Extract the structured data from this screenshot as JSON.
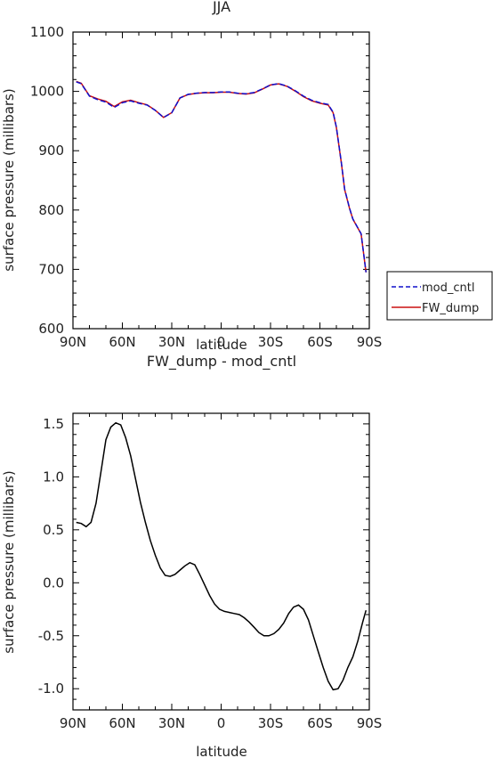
{
  "chart_data": [
    {
      "type": "line",
      "title": "JJA",
      "xlabel": "latitude",
      "ylabel": "surface pressure (millibars)",
      "xlim": [
        90,
        -90
      ],
      "ylim": [
        600,
        1100
      ],
      "x_ticks": [
        90,
        60,
        30,
        0,
        -30,
        -60,
        -90
      ],
      "x_tick_labels": [
        "90N",
        "60N",
        "30N",
        "0",
        "30S",
        "60S",
        "90S"
      ],
      "y_ticks": [
        600,
        700,
        800,
        900,
        1000,
        1100
      ],
      "y_tick_labels": [
        "600",
        "700",
        "800",
        "900",
        "1000",
        "1100"
      ],
      "legend_position": "right",
      "x": [
        88,
        85,
        80,
        75,
        70,
        65,
        60,
        55,
        50,
        45,
        40,
        35,
        30,
        25,
        20,
        15,
        10,
        5,
        0,
        -5,
        -10,
        -15,
        -20,
        -25,
        -30,
        -35,
        -40,
        -45,
        -50,
        -55,
        -60,
        -65,
        -68,
        -70,
        -73,
        -75,
        -78,
        -80,
        -85,
        -88
      ],
      "series": [
        {
          "name": "mod_cntl",
          "color": "#1010cc",
          "dash": "dashed",
          "values": [
            1016,
            1013,
            992,
            986,
            982,
            973,
            981,
            984,
            980,
            977,
            968,
            956,
            964,
            989,
            995,
            997,
            998,
            998,
            999,
            999,
            997,
            996,
            998,
            1004,
            1011,
            1013,
            1009,
            1001,
            992,
            985,
            981,
            978,
            965,
            940,
            880,
            835,
            803,
            785,
            760,
            695
          ]
        },
        {
          "name": "FW_dump",
          "color": "#cc1010",
          "dash": "solid",
          "values": [
            1016.6,
            1013.6,
            992.7,
            987.3,
            983.4,
            974.5,
            982.5,
            985.2,
            980.9,
            977.4,
            968.2,
            956.1,
            964.1,
            989.0,
            994.8,
            996.7,
            997.8,
            997.7,
            998.7,
            998.7,
            996.6,
            995.5,
            997.5,
            1003.8,
            1010.8,
            1012.8,
            1008.6,
            1000.4,
            991.2,
            984.1,
            980.0,
            977.1,
            964.1,
            939.2,
            879.3,
            834.4,
            802.6,
            784.7,
            759.8,
            694.9
          ]
        }
      ]
    },
    {
      "type": "line",
      "title": "FW_dump - mod_cntl",
      "xlabel": "latitude",
      "ylabel": "surface pressure (millibars)",
      "xlim": [
        90,
        -90
      ],
      "ylim": [
        -1.2,
        1.6
      ],
      "x_ticks": [
        90,
        60,
        30,
        0,
        -30,
        -60,
        -90
      ],
      "x_tick_labels": [
        "90N",
        "60N",
        "30N",
        "0",
        "30S",
        "60S",
        "90S"
      ],
      "y_ticks": [
        1.5,
        1.0,
        0.5,
        0.0,
        -0.5,
        -1.0
      ],
      "y_tick_labels": [
        "1.5",
        "1.0",
        "0.5",
        "0.0",
        "-0.5",
        "-1.0"
      ],
      "x": [
        88,
        85,
        82,
        79,
        76,
        73,
        70,
        67,
        64,
        61,
        58,
        55,
        52,
        49,
        46,
        43,
        40,
        37,
        34,
        31,
        28,
        25,
        22,
        19,
        16,
        13,
        10,
        7,
        4,
        1,
        -2,
        -5,
        -8,
        -11,
        -14,
        -17,
        -20,
        -23,
        -26,
        -29,
        -32,
        -35,
        -38,
        -41,
        -44,
        -47,
        -50,
        -53,
        -56,
        -59,
        -62,
        -65,
        -68,
        -71,
        -74,
        -77,
        -80,
        -83,
        -86,
        -88
      ],
      "series": [
        {
          "name": "",
          "color": "#000000",
          "dash": "solid",
          "values": [
            0.57,
            0.56,
            0.53,
            0.57,
            0.75,
            1.05,
            1.35,
            1.47,
            1.51,
            1.49,
            1.37,
            1.2,
            0.98,
            0.76,
            0.57,
            0.4,
            0.26,
            0.14,
            0.07,
            0.06,
            0.08,
            0.12,
            0.16,
            0.19,
            0.17,
            0.08,
            -0.02,
            -0.12,
            -0.2,
            -0.25,
            -0.27,
            -0.28,
            -0.29,
            -0.3,
            -0.33,
            -0.37,
            -0.42,
            -0.47,
            -0.5,
            -0.5,
            -0.48,
            -0.44,
            -0.38,
            -0.29,
            -0.23,
            -0.21,
            -0.25,
            -0.35,
            -0.5,
            -0.65,
            -0.8,
            -0.93,
            -1.01,
            -1.0,
            -0.92,
            -0.8,
            -0.7,
            -0.55,
            -0.37,
            -0.26
          ]
        }
      ]
    }
  ]
}
